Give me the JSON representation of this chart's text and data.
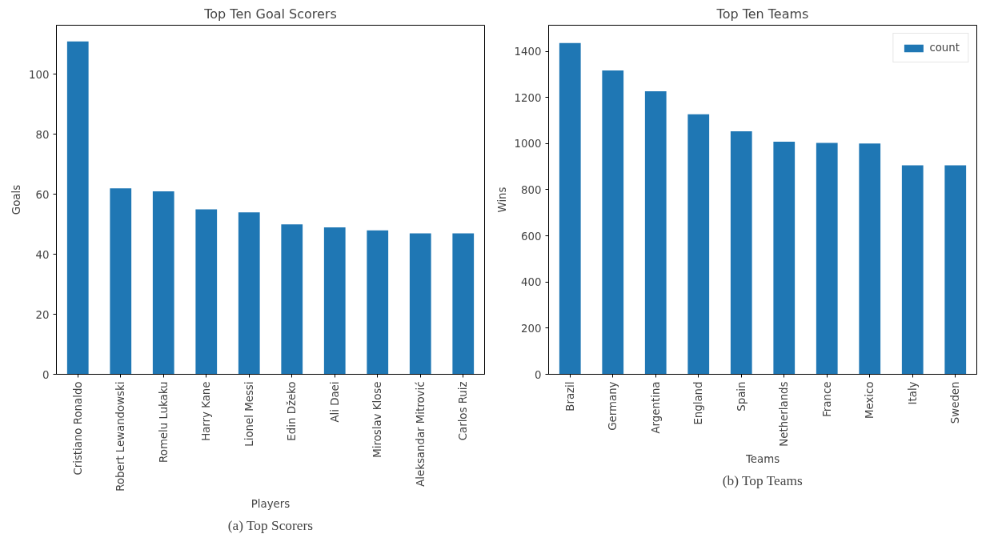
{
  "chart_data": [
    {
      "type": "bar",
      "title": "Top Ten Goal Scorers",
      "xlabel": "Players",
      "ylabel": "Goals",
      "annotations": [
        "(a) Top Scorers"
      ],
      "categories": [
        "Cristiano Ronaldo",
        "Robert Lewandowski",
        "Romelu Lukaku",
        "Harry Kane",
        "Lionel Messi",
        "Edin Džeko",
        "Ali Daei",
        "Miroslav Klose",
        "Aleksandar Mitrović",
        "Carlos Ruiz"
      ],
      "series": [
        {
          "color": "#1f77b4",
          "values": [
            111,
            62,
            61,
            55,
            54,
            50,
            49,
            48,
            47,
            47
          ]
        }
      ],
      "ylim": [
        0,
        116.4
      ],
      "yticks": [
        0,
        20,
        40,
        60,
        80,
        100
      ],
      "grid": false,
      "legend": false
    },
    {
      "type": "bar",
      "title": "Top Ten Teams",
      "xlabel": "Teams",
      "ylabel": "Wins",
      "annotations": [
        "(b) Top Teams"
      ],
      "categories": [
        "Brazil",
        "Germany",
        "Argentina",
        "England",
        "Spain",
        "Netherlands",
        "France",
        "Mexico",
        "Italy",
        "Sweden"
      ],
      "series": [
        {
          "name": "count",
          "color": "#1f77b4",
          "values": [
            1436,
            1317,
            1227,
            1127,
            1053,
            1008,
            1003,
            1000,
            906,
            906
          ]
        }
      ],
      "ylim": [
        0,
        1513
      ],
      "yticks": [
        0,
        200,
        400,
        600,
        800,
        1000,
        1200,
        1400
      ],
      "grid": false,
      "legend": "top right"
    }
  ]
}
